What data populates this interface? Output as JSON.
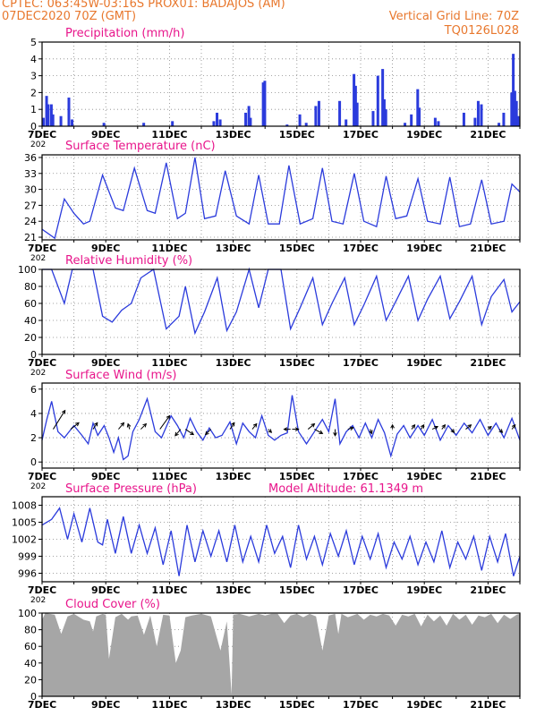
{
  "header": {
    "line1": "CPTEC:   063:45W-03:16S   PROX01: BADAJOS (AM)",
    "line2": "07DEC2020 70Z (GMT)",
    "vgrid": "Vertical Grid Line: 70Z",
    "code": "TQ0126L028"
  },
  "colors": {
    "series": "#2b3bdc",
    "title": "#e8158b",
    "header": "#e8782e",
    "cloud": "#a6a6a6",
    "arrow": "#000000"
  },
  "x_labels": [
    "7DEC",
    "9DEC",
    "11DEC",
    "13DEC",
    "15DEC",
    "17DEC",
    "19DEC",
    "21DEC"
  ],
  "year_fragment": "202",
  "chart_data": [
    {
      "type": "bar",
      "title": "Precipitation (mm/h)",
      "ylim": [
        0,
        5
      ],
      "yticks": [
        0,
        1,
        2,
        3,
        4,
        5
      ],
      "x_range_days": [
        7,
        22
      ],
      "x": [
        7.0,
        7.1,
        7.15,
        7.25,
        7.3,
        7.55,
        7.8,
        7.9,
        8.9,
        10.15,
        11.05,
        12.35,
        12.45,
        12.55,
        13.35,
        13.45,
        13.5,
        13.9,
        13.95,
        14.65,
        15.05,
        15.25,
        15.55,
        15.65,
        16.3,
        16.5,
        16.75,
        16.8,
        16.85,
        17.35,
        17.5,
        17.65,
        17.7,
        17.75,
        18.35,
        18.55,
        18.75,
        18.8,
        19.3,
        19.4,
        20.2,
        20.55,
        20.65,
        20.75,
        21.3,
        21.45,
        21.7,
        21.75,
        21.8,
        21.85,
        21.9
      ],
      "values": [
        0.5,
        1.8,
        1.3,
        1.3,
        0.7,
        0.6,
        1.7,
        0.4,
        0.2,
        0.2,
        0.3,
        0.3,
        0.8,
        0.4,
        0.8,
        1.2,
        0.5,
        2.6,
        2.7,
        0.1,
        0.7,
        0.2,
        1.2,
        1.5,
        1.5,
        0.4,
        3.1,
        2.4,
        1.4,
        0.9,
        3.0,
        3.4,
        1.6,
        1.0,
        0.2,
        0.7,
        2.2,
        1.1,
        0.5,
        0.3,
        0.8,
        0.5,
        1.5,
        1.3,
        0.2,
        0.8,
        2.0,
        4.3,
        2.1,
        1.5,
        0.6
      ]
    },
    {
      "type": "line",
      "title": "Surface Temperature (nC)",
      "ylim": [
        20.5,
        36.5
      ],
      "yticks": [
        21,
        24,
        27,
        30,
        33,
        36
      ],
      "x_range_days": [
        7,
        22
      ],
      "x": [
        7.0,
        7.4,
        7.7,
        8.0,
        8.3,
        8.5,
        8.9,
        9.3,
        9.55,
        9.9,
        10.3,
        10.55,
        10.9,
        11.25,
        11.5,
        11.8,
        12.1,
        12.45,
        12.75,
        13.1,
        13.5,
        13.8,
        14.1,
        14.45,
        14.75,
        15.1,
        15.5,
        15.8,
        16.1,
        16.45,
        16.8,
        17.1,
        17.5,
        17.8,
        18.1,
        18.45,
        18.8,
        19.1,
        19.5,
        19.8,
        20.1,
        20.45,
        20.8,
        21.1,
        21.5,
        21.75,
        22.0
      ],
      "values": [
        22.5,
        20.8,
        28.2,
        25.5,
        23.5,
        24.0,
        32.7,
        26.5,
        26.0,
        34.0,
        26.0,
        25.5,
        35.0,
        24.5,
        25.5,
        36.0,
        24.5,
        25.0,
        33.5,
        25.0,
        23.5,
        32.7,
        23.5,
        23.5,
        34.5,
        23.5,
        24.5,
        34.0,
        24.0,
        23.5,
        33.0,
        24.0,
        23.0,
        32.5,
        24.5,
        25.0,
        32.0,
        24.0,
        23.5,
        32.3,
        23.0,
        23.5,
        31.8,
        23.5,
        24.0,
        31.0,
        29.5
      ]
    },
    {
      "type": "line",
      "title": "Relative Humidity (%)",
      "ylim": [
        0,
        100
      ],
      "yticks": [
        0,
        20,
        40,
        60,
        80,
        100
      ],
      "x_range_days": [
        7,
        22
      ],
      "x": [
        7.0,
        7.3,
        7.7,
        7.95,
        8.4,
        8.6,
        8.9,
        9.2,
        9.5,
        9.8,
        10.1,
        10.5,
        10.9,
        11.3,
        11.5,
        11.8,
        12.1,
        12.5,
        12.8,
        13.1,
        13.5,
        13.8,
        14.1,
        14.5,
        14.8,
        15.1,
        15.5,
        15.8,
        16.1,
        16.5,
        16.8,
        17.1,
        17.5,
        17.8,
        18.1,
        18.5,
        18.8,
        19.1,
        19.5,
        19.8,
        20.1,
        20.5,
        20.8,
        21.1,
        21.5,
        21.75,
        22.0
      ],
      "values": [
        100,
        100,
        60,
        100,
        100,
        100,
        45,
        38,
        52,
        60,
        90,
        100,
        30,
        45,
        80,
        25,
        50,
        90,
        28,
        50,
        100,
        55,
        100,
        100,
        30,
        55,
        90,
        35,
        60,
        90,
        35,
        58,
        92,
        40,
        62,
        92,
        40,
        65,
        92,
        42,
        62,
        92,
        35,
        68,
        88,
        50,
        62
      ]
    },
    {
      "type": "line",
      "title": "Surface Wind (m/s)",
      "ylim": [
        -0.5,
        6.5
      ],
      "yticks": [
        0,
        2,
        4,
        6
      ],
      "x_range_days": [
        7,
        22
      ],
      "x": [
        7.0,
        7.15,
        7.3,
        7.5,
        7.7,
        8.0,
        8.25,
        8.45,
        8.6,
        8.75,
        8.95,
        9.1,
        9.25,
        9.4,
        9.55,
        9.7,
        9.85,
        10.05,
        10.3,
        10.55,
        10.75,
        11.05,
        11.25,
        11.45,
        11.65,
        11.85,
        12.05,
        12.25,
        12.45,
        12.65,
        12.9,
        13.1,
        13.3,
        13.5,
        13.7,
        13.9,
        14.1,
        14.3,
        14.5,
        14.7,
        14.85,
        15.05,
        15.3,
        15.55,
        15.8,
        16.0,
        16.2,
        16.35,
        16.55,
        16.75,
        16.95,
        17.15,
        17.35,
        17.55,
        17.75,
        17.95,
        18.15,
        18.35,
        18.55,
        18.8,
        19.0,
        19.25,
        19.5,
        19.75,
        20.0,
        20.25,
        20.5,
        20.75,
        21.0,
        21.25,
        21.5,
        21.75,
        22.0
      ],
      "values": [
        1.8,
        3.5,
        5.0,
        2.5,
        2.0,
        3.0,
        2.2,
        1.5,
        3.2,
        2.2,
        3.0,
        2.0,
        0.8,
        2.0,
        0.2,
        0.5,
        2.5,
        3.5,
        5.2,
        2.5,
        2.0,
        3.8,
        3.0,
        2.0,
        3.6,
        2.5,
        1.8,
        2.8,
        2.0,
        2.2,
        3.3,
        1.5,
        3.2,
        2.5,
        2.0,
        3.8,
        2.2,
        1.8,
        2.2,
        2.4,
        5.5,
        2.5,
        1.5,
        2.5,
        3.5,
        2.5,
        5.2,
        1.5,
        2.5,
        3.0,
        2.0,
        3.2,
        2.0,
        3.5,
        2.4,
        0.5,
        2.3,
        3.0,
        2.0,
        3.0,
        2.2,
        3.5,
        1.8,
        3.0,
        2.2,
        3.2,
        2.4,
        3.5,
        2.2,
        3.2,
        2.0,
        3.6,
        1.8
      ],
      "arrows": [
        {
          "x": 7.35,
          "u": 2.2,
          "v": 3.5
        },
        {
          "x": 7.9,
          "u": 1.5,
          "v": 1.2
        },
        {
          "x": 8.6,
          "u": 0.8,
          "v": 1.2
        },
        {
          "x": 9.4,
          "u": 1.0,
          "v": 1.2
        },
        {
          "x": 9.75,
          "u": -0.3,
          "v": 1.0
        },
        {
          "x": 10.1,
          "u": 1.0,
          "v": 1.0
        },
        {
          "x": 10.7,
          "u": 1.8,
          "v": 2.5
        },
        {
          "x": 11.35,
          "u": -1.0,
          "v": -1.2
        },
        {
          "x": 11.5,
          "u": 1.5,
          "v": -1.0
        },
        {
          "x": 12.3,
          "u": -1.0,
          "v": -1.0
        },
        {
          "x": 12.9,
          "u": 0.8,
          "v": 1.2
        },
        {
          "x": 13.6,
          "u": 0.8,
          "v": 1.0
        },
        {
          "x": 14.1,
          "u": 0.6,
          "v": -0.6
        },
        {
          "x": 14.8,
          "u": -1.2,
          "v": 0.0
        },
        {
          "x": 14.85,
          "u": 1.2,
          "v": 0.0
        },
        {
          "x": 15.35,
          "u": 1.2,
          "v": 1.0
        },
        {
          "x": 15.55,
          "u": 1.5,
          "v": -0.8
        },
        {
          "x": 16.2,
          "u": 0.0,
          "v": -1.2
        },
        {
          "x": 16.6,
          "u": 1.0,
          "v": 0.3
        },
        {
          "x": 17.3,
          "u": 0.3,
          "v": -0.8
        },
        {
          "x": 18.0,
          "u": 0.0,
          "v": 0.8
        },
        {
          "x": 18.6,
          "u": 0.6,
          "v": 0.8
        },
        {
          "x": 18.9,
          "u": 0.5,
          "v": 0.8
        },
        {
          "x": 19.25,
          "u": 1.0,
          "v": 0.5
        },
        {
          "x": 19.55,
          "u": 0.6,
          "v": 0.8
        },
        {
          "x": 19.85,
          "u": 0.5,
          "v": -0.6
        },
        {
          "x": 20.3,
          "u": 1.0,
          "v": 0.8
        },
        {
          "x": 21.0,
          "u": 0.6,
          "v": 0.5
        },
        {
          "x": 21.35,
          "u": 0.6,
          "v": -0.6
        },
        {
          "x": 21.75,
          "u": 0.6,
          "v": 0.8
        }
      ]
    },
    {
      "type": "line",
      "title": "Surface Pressure (hPa)",
      "note": "Model Altitude: 61.1349 m",
      "ylim": [
        994.5,
        1009.5
      ],
      "yticks": [
        996,
        999,
        1002,
        1005,
        1008
      ],
      "x_range_days": [
        7,
        22
      ],
      "x": [
        7.0,
        7.3,
        7.55,
        7.8,
        8.0,
        8.25,
        8.5,
        8.75,
        8.9,
        9.05,
        9.3,
        9.55,
        9.8,
        10.05,
        10.3,
        10.55,
        10.8,
        11.05,
        11.3,
        11.55,
        11.8,
        12.05,
        12.3,
        12.55,
        12.8,
        13.05,
        13.3,
        13.55,
        13.8,
        14.05,
        14.3,
        14.55,
        14.8,
        15.05,
        15.3,
        15.55,
        15.8,
        16.05,
        16.3,
        16.55,
        16.8,
        17.05,
        17.3,
        17.55,
        17.8,
        18.05,
        18.3,
        18.55,
        18.8,
        19.05,
        19.3,
        19.55,
        19.8,
        20.05,
        20.3,
        20.55,
        20.8,
        21.05,
        21.3,
        21.55,
        21.8,
        22.0
      ],
      "values": [
        1004.5,
        1005.5,
        1007.5,
        1002.0,
        1006.5,
        1001.5,
        1007.5,
        1001.5,
        1001.0,
        1005.5,
        999.5,
        1006.0,
        999.5,
        1004.5,
        999.5,
        1004.0,
        997.5,
        1003.5,
        995.5,
        1004.5,
        998.0,
        1003.5,
        999.0,
        1003.5,
        998.0,
        1004.5,
        998.0,
        1002.5,
        998.0,
        1004.5,
        999.5,
        1002.5,
        997.0,
        1004.5,
        998.5,
        1002.5,
        997.5,
        1003.0,
        999.0,
        1003.5,
        997.5,
        1002.5,
        998.5,
        1003.0,
        997.0,
        1001.5,
        998.5,
        1002.5,
        997.5,
        1001.5,
        998.0,
        1003.5,
        997.0,
        1001.5,
        998.5,
        1002.5,
        996.5,
        1002.5,
        998.0,
        1003.0,
        995.5,
        999.0
      ]
    },
    {
      "type": "area",
      "title": "Cloud Cover (%)",
      "ylim": [
        0,
        100
      ],
      "yticks": [
        0,
        20,
        40,
        60,
        80,
        100
      ],
      "x_range_days": [
        7,
        22
      ],
      "x": [
        7.0,
        7.1,
        7.4,
        7.6,
        7.8,
        8.0,
        8.3,
        8.5,
        8.6,
        8.7,
        8.9,
        9.0,
        9.1,
        9.3,
        9.5,
        9.7,
        9.8,
        10.0,
        10.2,
        10.4,
        10.6,
        10.8,
        11.0,
        11.2,
        11.35,
        11.5,
        11.7,
        12.0,
        12.3,
        12.6,
        12.8,
        12.95,
        13.0,
        13.2,
        13.5,
        13.8,
        14.0,
        14.2,
        14.4,
        14.6,
        14.8,
        15.0,
        15.2,
        15.4,
        15.6,
        15.8,
        16.0,
        16.2,
        16.3,
        16.4,
        16.6,
        16.9,
        17.1,
        17.3,
        17.5,
        17.7,
        17.9,
        18.1,
        18.3,
        18.5,
        18.7,
        18.9,
        19.1,
        19.3,
        19.5,
        19.7,
        19.9,
        20.1,
        20.3,
        20.5,
        20.7,
        20.9,
        21.1,
        21.3,
        21.5,
        21.7,
        21.9,
        22.0
      ],
      "values": [
        92,
        100,
        98,
        75,
        96,
        99,
        92,
        90,
        78,
        96,
        99,
        98,
        45,
        95,
        99,
        92,
        96,
        97,
        74,
        97,
        60,
        98,
        97,
        40,
        55,
        95,
        97,
        99,
        96,
        55,
        90,
        2,
        98,
        99,
        96,
        99,
        97,
        99,
        99,
        88,
        97,
        99,
        95,
        99,
        96,
        55,
        97,
        99,
        75,
        99,
        95,
        99,
        92,
        98,
        96,
        99,
        97,
        85,
        98,
        96,
        99,
        84,
        98,
        90,
        97,
        85,
        99,
        92,
        98,
        86,
        97,
        95,
        99,
        88,
        98,
        93,
        98,
        99
      ]
    }
  ]
}
